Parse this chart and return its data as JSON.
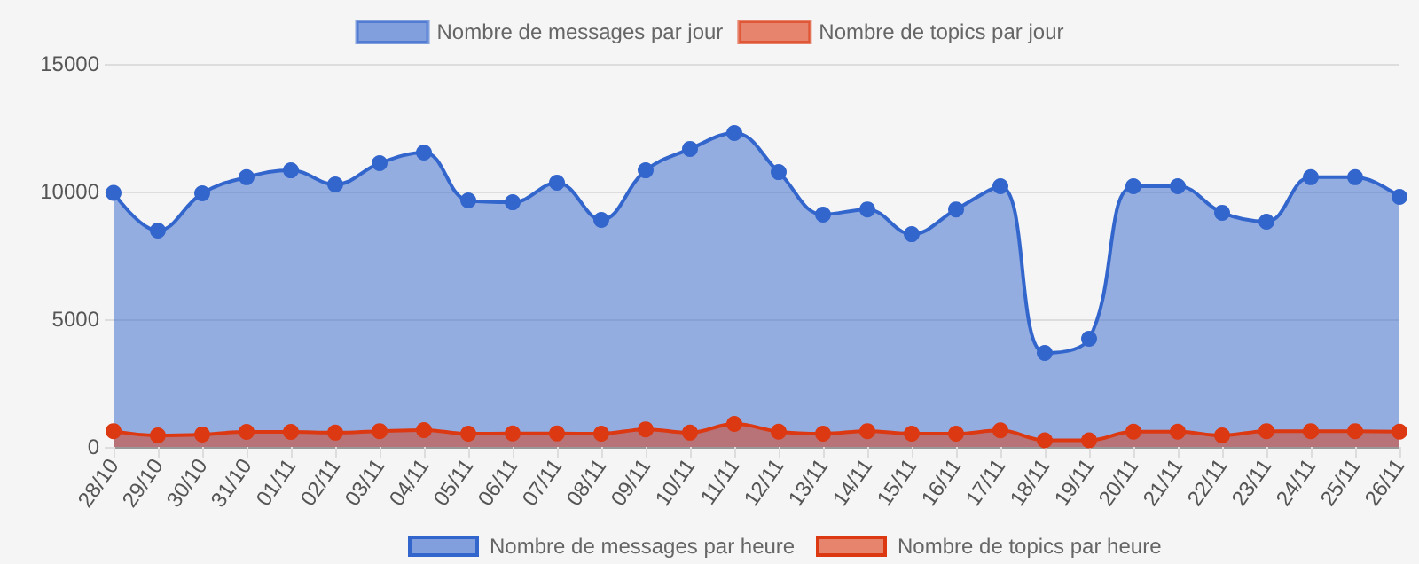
{
  "chart_data": {
    "type": "area",
    "categories": [
      "28/10",
      "29/10",
      "30/10",
      "31/10",
      "01/11",
      "02/11",
      "03/11",
      "04/11",
      "05/11",
      "06/11",
      "07/11",
      "08/11",
      "09/11",
      "10/11",
      "11/11",
      "12/11",
      "13/11",
      "14/11",
      "15/11",
      "16/11",
      "17/11",
      "18/11",
      "19/11",
      "20/11",
      "21/11",
      "22/11",
      "23/11",
      "24/11",
      "25/11",
      "26/11"
    ],
    "series": [
      {
        "name": "Nombre de messages par jour",
        "color": "#3366cc",
        "values": [
          9950,
          8470,
          9930,
          10560,
          10830,
          10280,
          11110,
          11530,
          9650,
          9580,
          10350,
          8890,
          10830,
          11670,
          12290,
          10760,
          9100,
          9300,
          8330,
          9300,
          10210,
          3680,
          4240,
          10210,
          10210,
          9170,
          8820,
          10560,
          10560,
          9790
        ]
      },
      {
        "name": "Nombre de topics par jour",
        "color": "#dc3912",
        "values": [
          620,
          450,
          490,
          590,
          590,
          560,
          620,
          660,
          520,
          530,
          530,
          520,
          690,
          560,
          900,
          600,
          520,
          620,
          520,
          520,
          650,
          260,
          260,
          600,
          600,
          450,
          620,
          620,
          620,
          600
        ]
      }
    ],
    "ylim": [
      0,
      15000
    ],
    "yticks": [
      0,
      5000,
      10000,
      15000
    ],
    "grid": "y",
    "legend": "top",
    "marker": "circle",
    "line_style": "solid",
    "annotations": [
      "Nombre de messages par heure",
      "Nombre de topics par heure"
    ]
  }
}
